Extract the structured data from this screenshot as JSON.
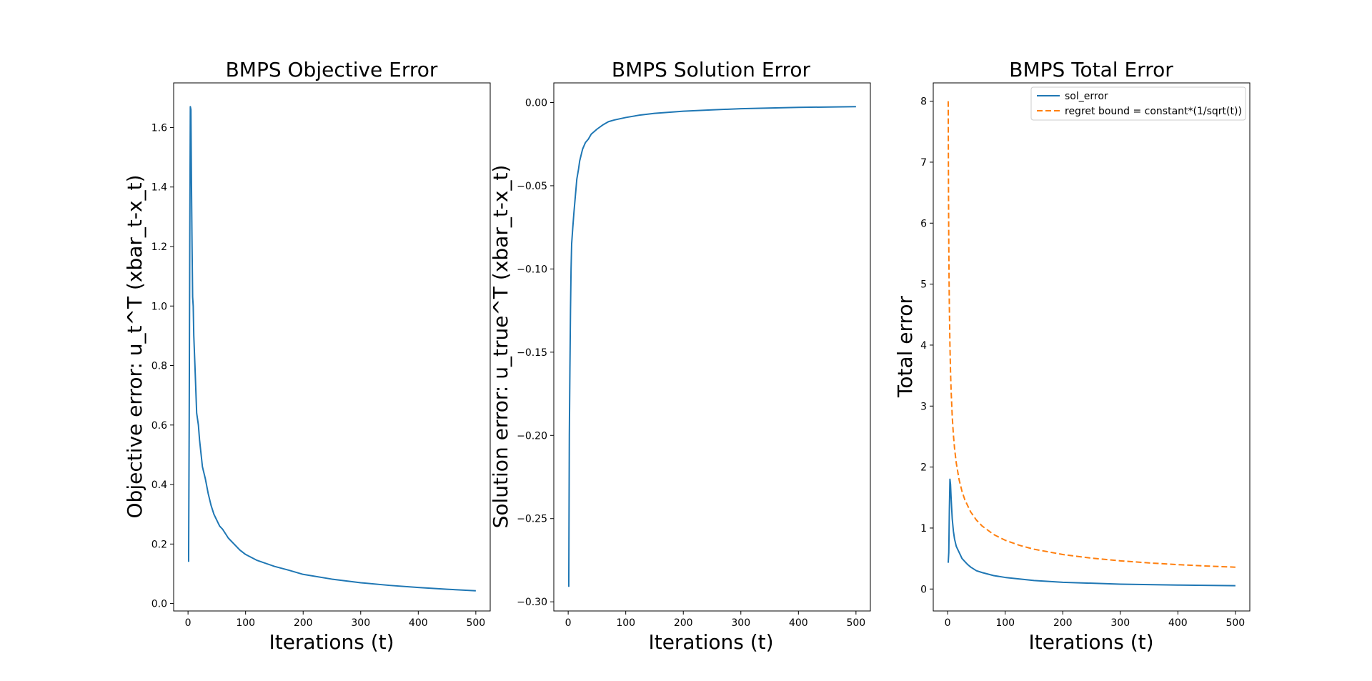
{
  "chart_data": [
    {
      "type": "line",
      "title": "BMPS Objective Error",
      "xlabel": "Iterations (t)",
      "ylabel": "Objective error: u_t^T (xbar_t-x_t)",
      "xlim": [
        -25,
        525
      ],
      "ylim": [
        -0.025,
        1.75
      ],
      "xticks": [
        0,
        100,
        200,
        300,
        400,
        500
      ],
      "yticks": [
        0.0,
        0.2,
        0.4,
        0.6,
        0.8,
        1.0,
        1.2,
        1.4,
        1.6
      ],
      "ytick_labels": [
        "0.0",
        "0.2",
        "0.4",
        "0.6",
        "0.8",
        "1.0",
        "1.2",
        "1.4",
        "1.6"
      ],
      "legend": null,
      "series": [
        {
          "color": "#1f77b4",
          "dash": "",
          "x": [
            1,
            2,
            3,
            4,
            5,
            6,
            7,
            8,
            9,
            10,
            12,
            15,
            18,
            20,
            25,
            30,
            35,
            40,
            45,
            50,
            55,
            60,
            70,
            80,
            90,
            100,
            120,
            150,
            175,
            200,
            250,
            300,
            350,
            400,
            450,
            500
          ],
          "y": [
            0.14,
            0.6,
            1.2,
            1.67,
            1.66,
            1.4,
            1.2,
            1.03,
            1.0,
            0.9,
            0.8,
            0.64,
            0.6,
            0.55,
            0.46,
            0.42,
            0.37,
            0.33,
            0.3,
            0.28,
            0.26,
            0.25,
            0.22,
            0.2,
            0.18,
            0.165,
            0.145,
            0.125,
            0.112,
            0.098,
            0.082,
            0.07,
            0.061,
            0.054,
            0.048,
            0.043
          ]
        }
      ]
    },
    {
      "type": "line",
      "title": "BMPS Solution Error",
      "xlabel": "Iterations (t)",
      "ylabel": "Solution error: u_true^T (xbar_t-x_t)",
      "xlim": [
        -25,
        525
      ],
      "ylim": [
        -0.3055,
        0.0118
      ],
      "xticks": [
        0,
        100,
        200,
        300,
        400,
        500
      ],
      "yticks": [
        0.0,
        -0.05,
        -0.1,
        -0.15,
        -0.2,
        -0.25,
        -0.3
      ],
      "ytick_labels": [
        "0.00",
        "−0.05",
        "−0.10",
        "−0.15",
        "−0.20",
        "−0.25",
        "−0.30"
      ],
      "legend": null,
      "series": [
        {
          "color": "#1f77b4",
          "dash": "",
          "x": [
            1,
            2,
            3,
            4,
            5,
            6,
            7,
            8,
            10,
            12,
            15,
            18,
            20,
            25,
            30,
            35,
            40,
            50,
            60,
            70,
            80,
            100,
            125,
            150,
            200,
            250,
            300,
            400,
            500
          ],
          "y": [
            -0.291,
            -0.2,
            -0.16,
            -0.125,
            -0.1,
            -0.085,
            -0.08,
            -0.075,
            -0.066,
            -0.058,
            -0.046,
            -0.04,
            -0.035,
            -0.028,
            -0.024,
            -0.022,
            -0.019,
            -0.016,
            -0.0135,
            -0.0115,
            -0.0105,
            -0.009,
            -0.0075,
            -0.0065,
            -0.0052,
            -0.0044,
            -0.0037,
            -0.0029,
            -0.0025
          ]
        }
      ]
    },
    {
      "type": "line",
      "title": "BMPS Total Error",
      "xlabel": "Iterations (t)",
      "ylabel": "Total error",
      "xlim": [
        -25,
        525
      ],
      "ylim": [
        -0.36,
        8.3
      ],
      "xticks": [
        0,
        100,
        200,
        300,
        400,
        500
      ],
      "yticks": [
        0,
        1,
        2,
        3,
        4,
        5,
        6,
        7,
        8
      ],
      "ytick_labels": [
        "0",
        "1",
        "2",
        "3",
        "4",
        "5",
        "6",
        "7",
        "8"
      ],
      "legend": "top-right",
      "series": [
        {
          "name": "sol_error",
          "color": "#1f77b4",
          "dash": "",
          "x": [
            1,
            2,
            3,
            4,
            5,
            6,
            8,
            10,
            12,
            15,
            20,
            25,
            30,
            35,
            40,
            50,
            60,
            80,
            100,
            150,
            200,
            300,
            400,
            500
          ],
          "y": [
            0.43,
            0.6,
            1.3,
            1.8,
            1.72,
            1.5,
            1.15,
            0.95,
            0.82,
            0.7,
            0.6,
            0.5,
            0.45,
            0.4,
            0.36,
            0.3,
            0.27,
            0.22,
            0.19,
            0.14,
            0.11,
            0.08,
            0.065,
            0.055
          ]
        },
        {
          "name": "regret bound = constant*(1/sqrt(t))",
          "color": "#ff7f0e",
          "dash": "8,4",
          "x": [
            1,
            1.5,
            2,
            2.5,
            3,
            4,
            5,
            6,
            8,
            10,
            12,
            15,
            20,
            25,
            30,
            40,
            50,
            60,
            80,
            100,
            125,
            150,
            200,
            250,
            300,
            350,
            400,
            450,
            500
          ],
          "y": [
            8.0,
            6.532,
            5.657,
            5.06,
            4.619,
            4.0,
            3.578,
            3.266,
            2.828,
            2.53,
            2.309,
            2.066,
            1.789,
            1.6,
            1.461,
            1.265,
            1.131,
            1.033,
            0.894,
            0.8,
            0.716,
            0.653,
            0.566,
            0.506,
            0.462,
            0.428,
            0.4,
            0.377,
            0.358
          ]
        }
      ]
    }
  ]
}
